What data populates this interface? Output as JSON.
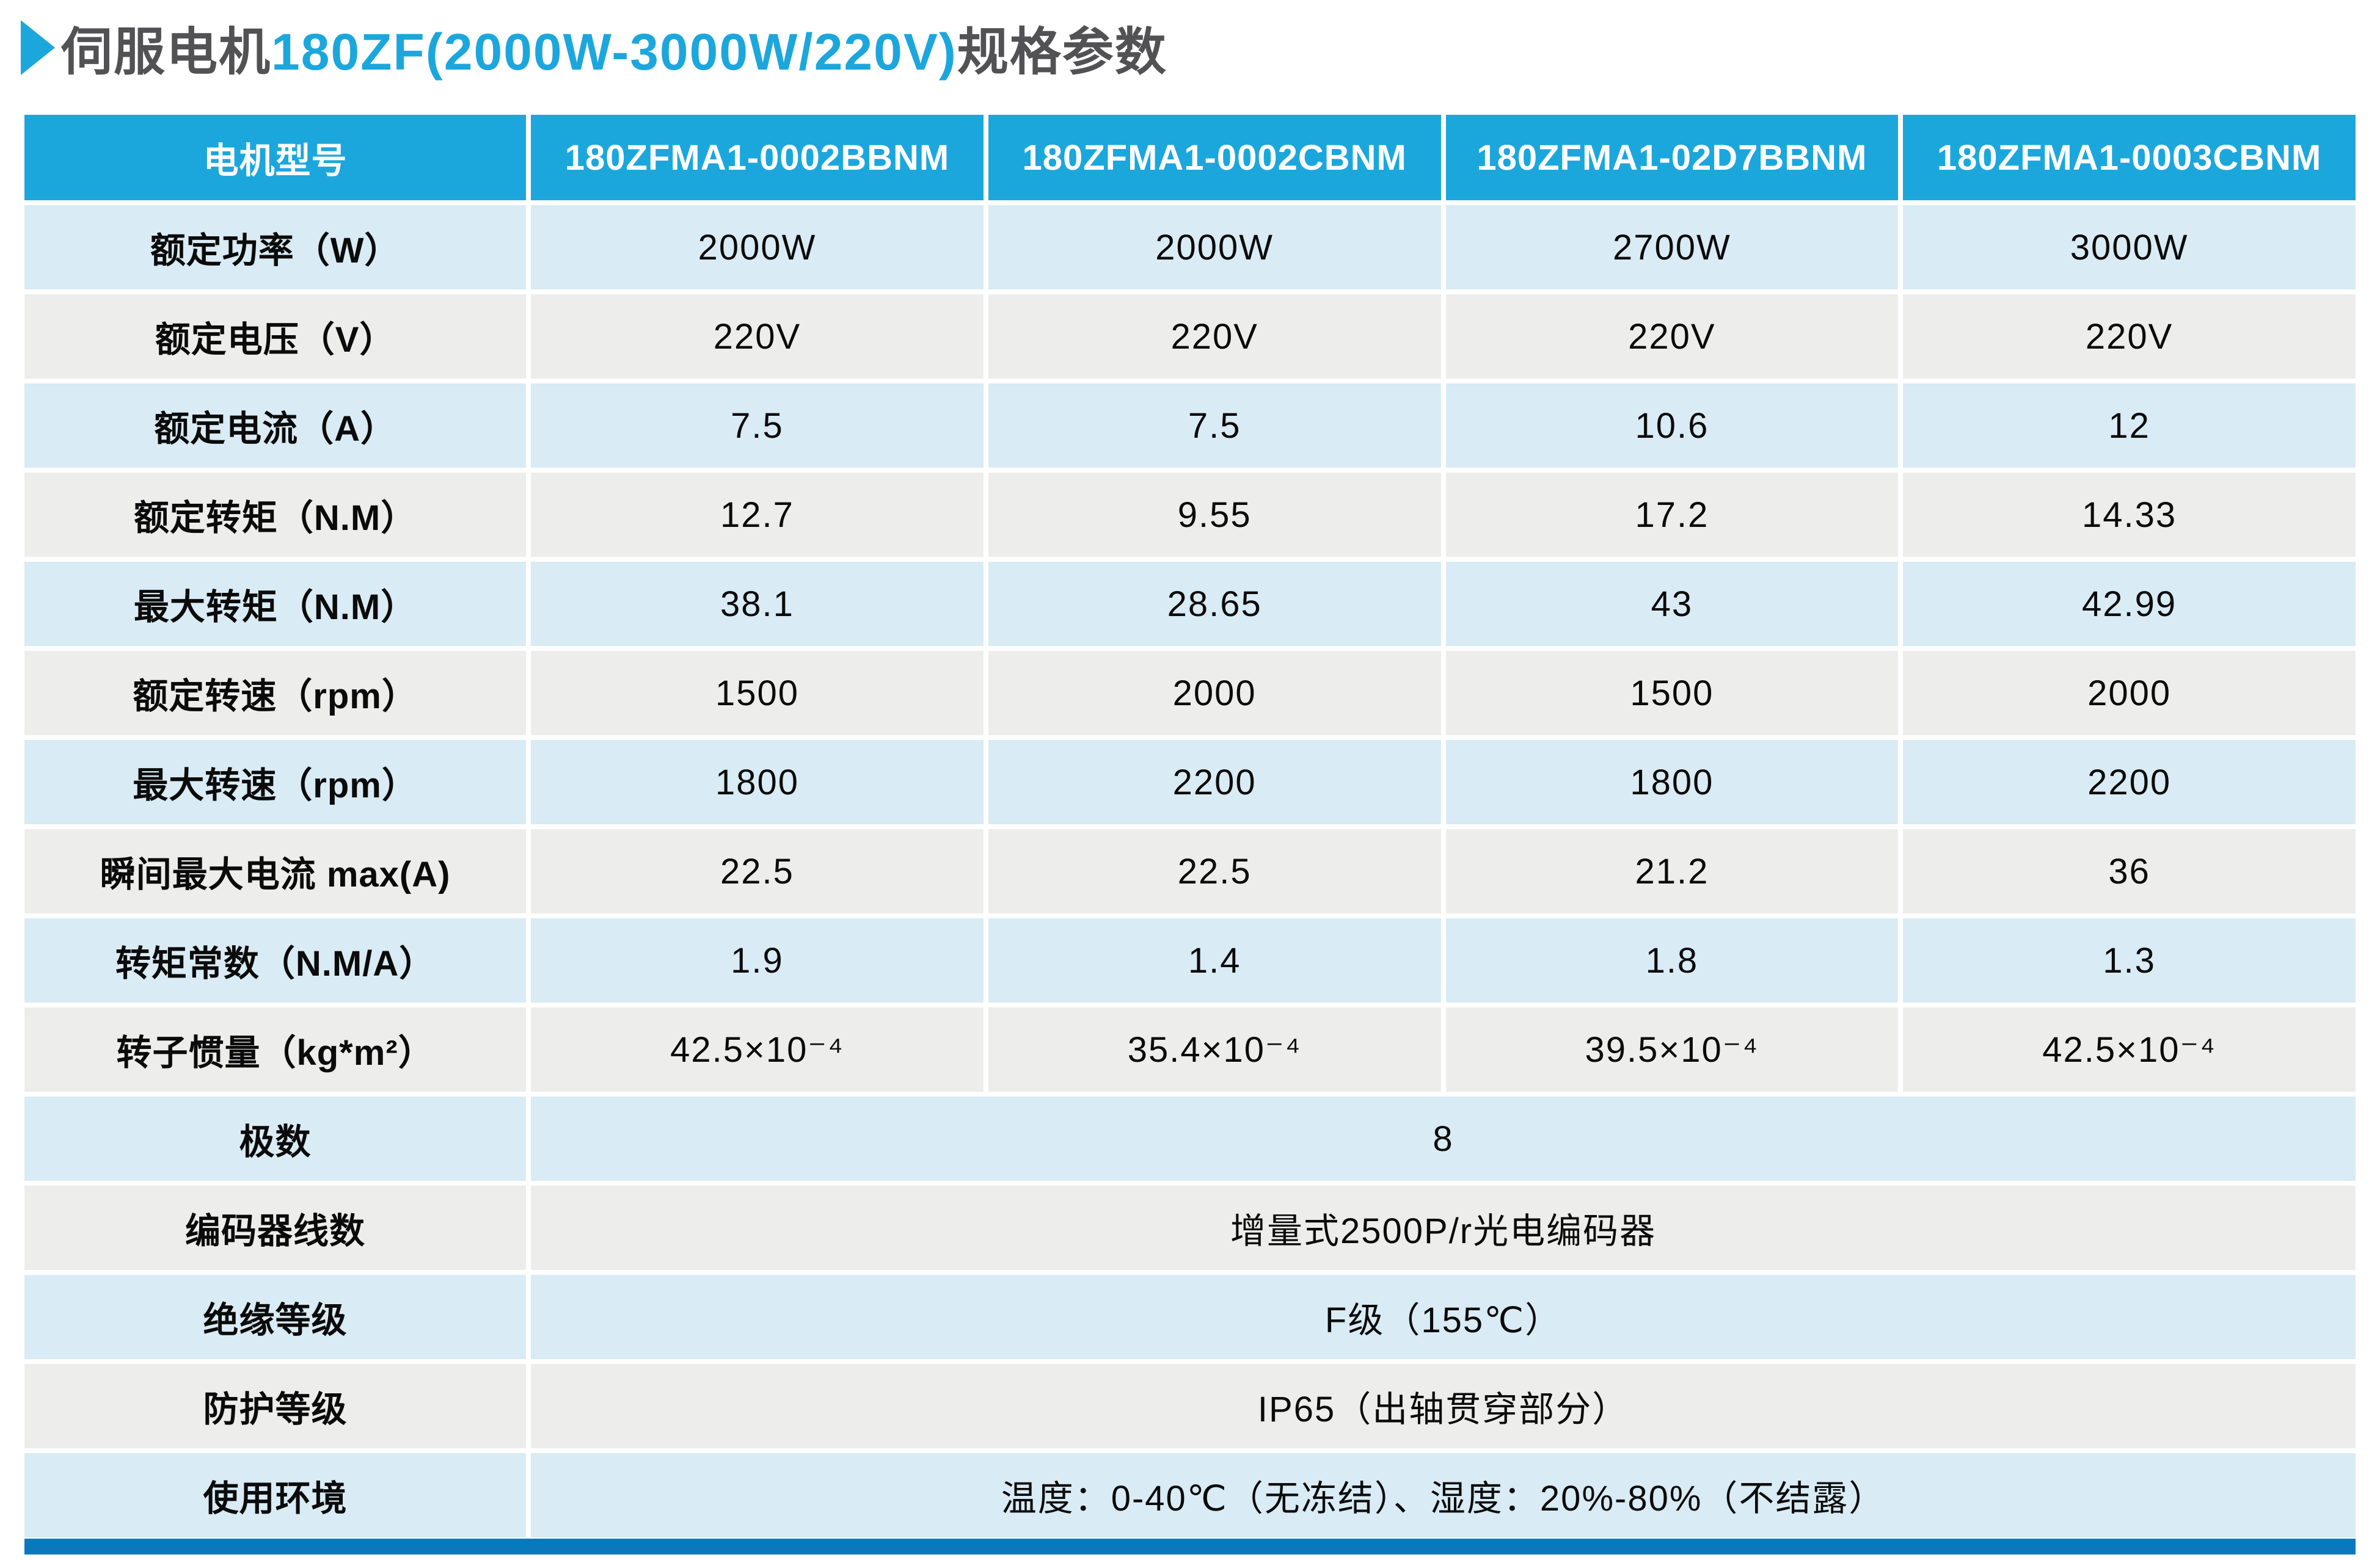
{
  "title": {
    "prefix": "伺服电机",
    "model_range": "180ZF(2000W-3000W/220V)",
    "suffix": "规格参数"
  },
  "colors": {
    "accent": "#1CA7DC",
    "header_bg": "#1CA7DC",
    "row_blue": "#D9EBF4",
    "row_gray": "#EDEDEC",
    "bottom_bar": "#0979BE",
    "title_dark": "#525254",
    "cell_text": "#0B0B0B"
  },
  "table": {
    "header": [
      "电机型号",
      "180ZFMA1-0002BBNM",
      "180ZFMA1-0002CBNM",
      "180ZFMA1-02D7BBNM",
      "180ZFMA1-0003CBNM"
    ],
    "rows": [
      {
        "label": "额定功率（W）",
        "values": [
          "2000W",
          "2000W",
          "2700W",
          "3000W"
        ]
      },
      {
        "label": "额定电压（V）",
        "values": [
          "220V",
          "220V",
          "220V",
          "220V"
        ]
      },
      {
        "label": "额定电流（A）",
        "values": [
          "7.5",
          "7.5",
          "10.6",
          "12"
        ]
      },
      {
        "label": "额定转矩（N.M）",
        "values": [
          "12.7",
          "9.55",
          "17.2",
          "14.33"
        ]
      },
      {
        "label": "最大转矩（N.M）",
        "values": [
          "38.1",
          "28.65",
          "43",
          "42.99"
        ]
      },
      {
        "label": "额定转速（rpm）",
        "values": [
          "1500",
          "2000",
          "1500",
          "2000"
        ]
      },
      {
        "label": "最大转速（rpm）",
        "values": [
          "1800",
          "2200",
          "1800",
          "2200"
        ]
      },
      {
        "label": "瞬间最大电流 max(A)",
        "values": [
          "22.5",
          "22.5",
          "21.2",
          "36"
        ]
      },
      {
        "label": "转矩常数（N.M/A）",
        "values": [
          "1.9",
          "1.4",
          "1.8",
          "1.3"
        ]
      },
      {
        "label": "转子惯量（kg*m²）",
        "values": [
          "42.5×10⁻⁴",
          "35.4×10⁻⁴",
          "39.5×10⁻⁴",
          "42.5×10⁻⁴"
        ]
      },
      {
        "label": "极数",
        "span_value": "8"
      },
      {
        "label": "编码器线数",
        "span_value": "增量式2500P/r光电编码器"
      },
      {
        "label": "绝缘等级",
        "span_value": "F级（155℃）"
      },
      {
        "label": "防护等级",
        "span_value": "IP65（出轴贯穿部分）"
      },
      {
        "label": "使用环境",
        "span_value": "温度：0-40℃（无冻结）、湿度：20%-80%（不结露）"
      }
    ]
  }
}
